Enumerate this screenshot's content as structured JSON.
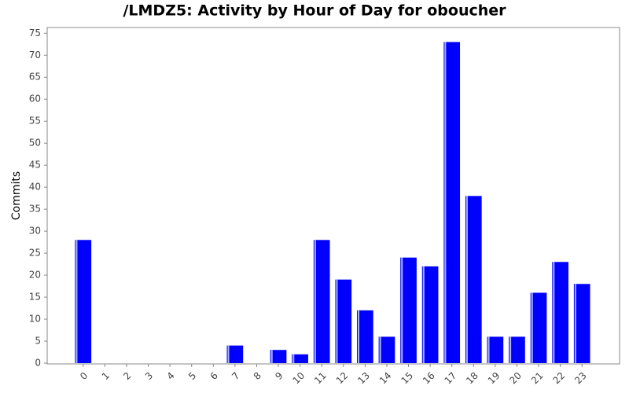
{
  "chart_data": {
    "type": "bar",
    "title": "/LMDZ5: Activity by Hour of Day for oboucher",
    "y_label": "Commits",
    "categories": [
      "0",
      "1",
      "2",
      "3",
      "4",
      "5",
      "6",
      "7",
      "8",
      "9",
      "10",
      "11",
      "12",
      "13",
      "14",
      "15",
      "16",
      "17",
      "18",
      "19",
      "20",
      "21",
      "22",
      "23"
    ],
    "values": [
      28,
      0,
      0,
      0,
      0,
      0,
      0,
      4,
      0,
      3,
      2,
      28,
      19,
      12,
      6,
      24,
      22,
      73,
      38,
      6,
      6,
      16,
      23,
      18
    ],
    "color": "#0000ff",
    "ylim": [
      0,
      76.3
    ],
    "yticks": [
      0,
      5,
      10,
      15,
      20,
      25,
      30,
      35,
      40,
      45,
      50,
      55,
      60,
      65,
      70,
      75
    ],
    "grid": false
  }
}
